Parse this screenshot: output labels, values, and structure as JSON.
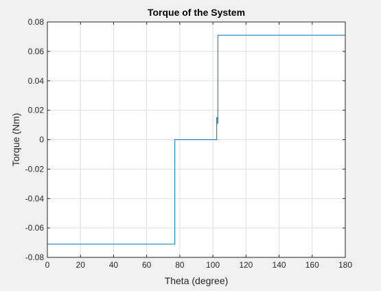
{
  "chart_data": {
    "type": "line",
    "title": "Torque of the System",
    "xlabel": "Theta (degree)",
    "ylabel": "Torque (Nm)",
    "xlim": [
      0,
      180
    ],
    "ylim": [
      -0.08,
      0.08
    ],
    "xticks": [
      0,
      20,
      40,
      60,
      80,
      100,
      120,
      140,
      160,
      180
    ],
    "yticks": [
      -0.08,
      -0.06,
      -0.04,
      -0.02,
      0,
      0.02,
      0.04,
      0.06,
      0.08
    ],
    "xtick_labels": [
      "0",
      "20",
      "40",
      "60",
      "80",
      "100",
      "120",
      "140",
      "160",
      "180"
    ],
    "ytick_labels": [
      "-0.08",
      "-0.06",
      "-0.04",
      "-0.02",
      "0",
      "0.02",
      "0.04",
      "0.06",
      "0.08"
    ],
    "grid": true,
    "line_color": "#0072bd",
    "series": [
      {
        "x": [
          0,
          77,
          77,
          102.3,
          102.3,
          102.8,
          102.8,
          103,
          103,
          180
        ],
        "y": [
          -0.071,
          -0.071,
          0,
          0,
          0.015,
          0.015,
          0.011,
          0.011,
          0.071,
          0.071
        ]
      }
    ]
  }
}
